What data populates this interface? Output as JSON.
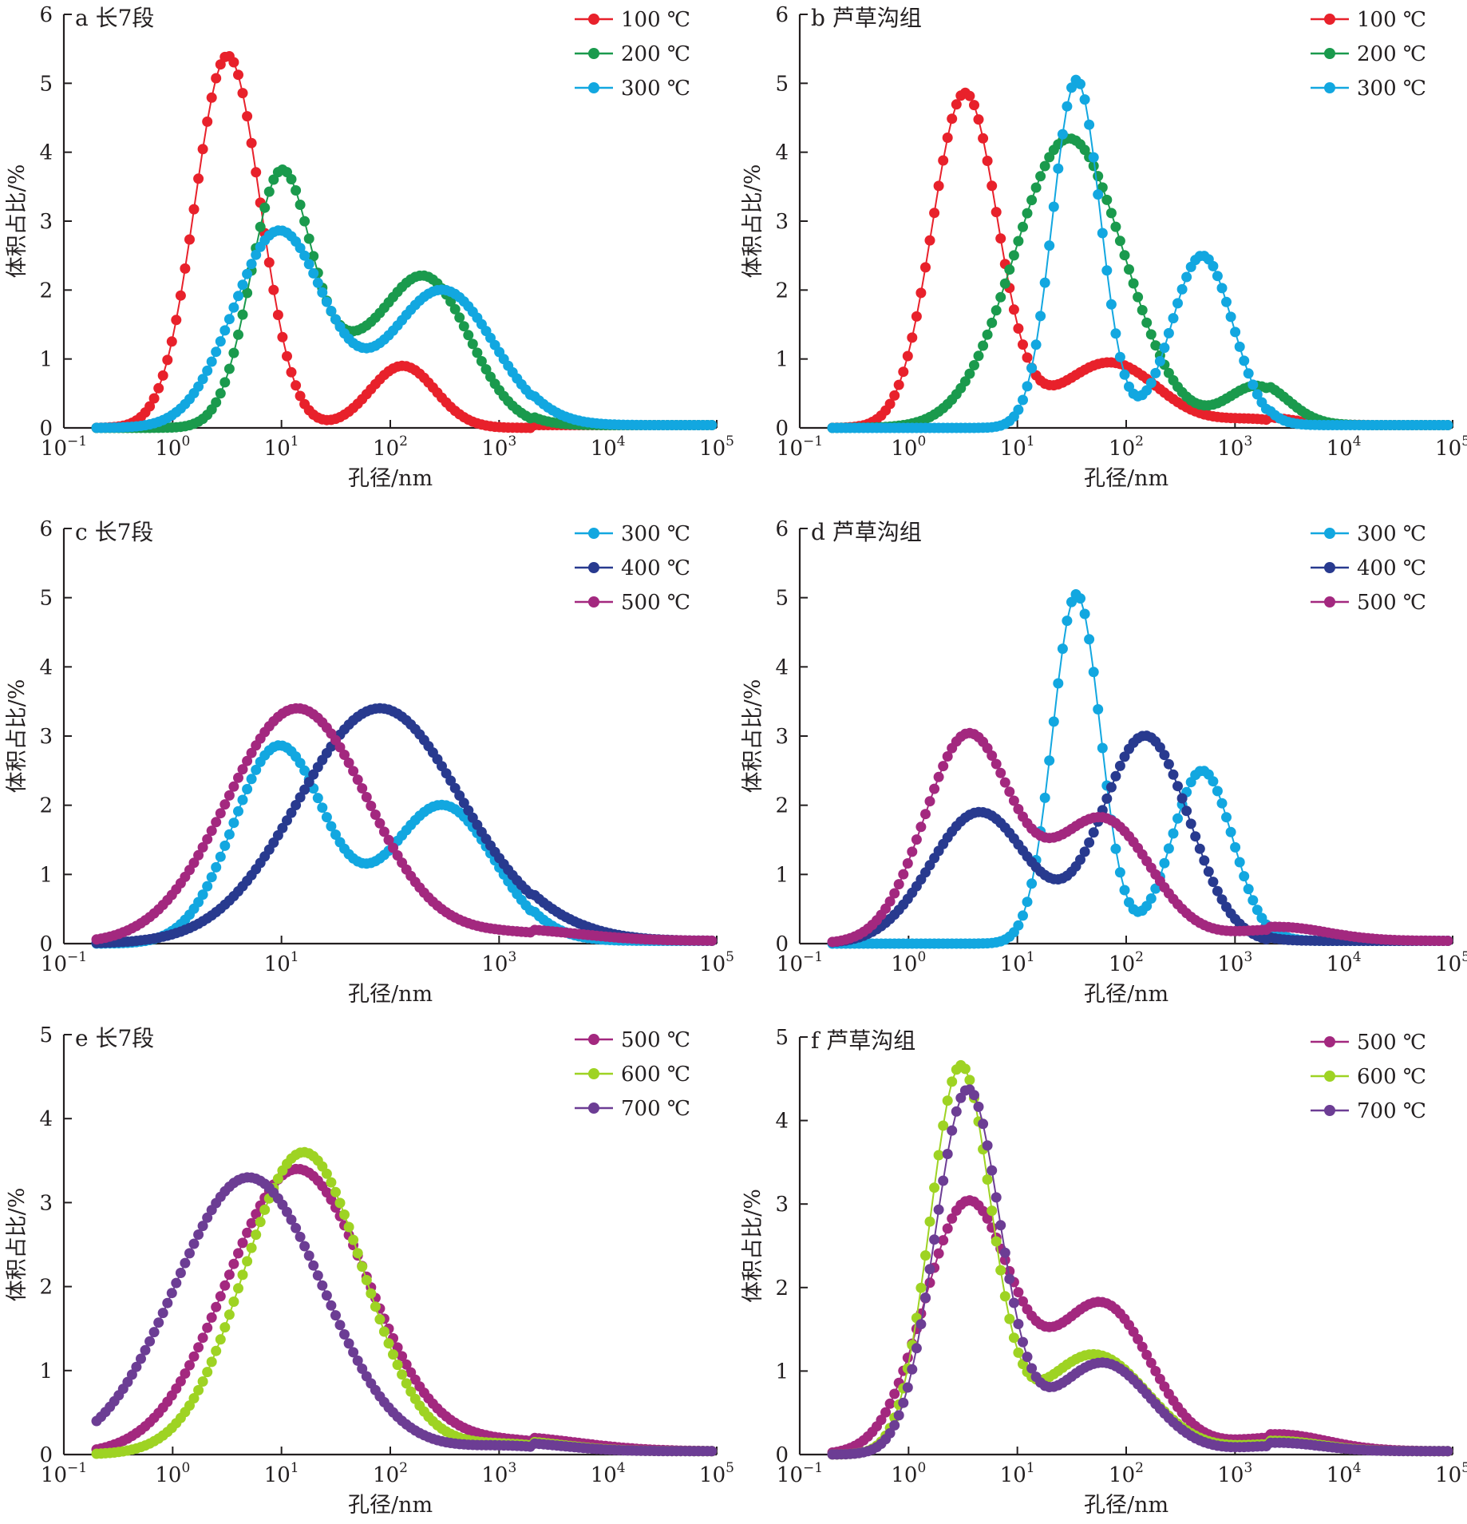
{
  "chart_data": [
    {
      "type": "line",
      "panel_label": "a 长7段",
      "xlabel": "孔径/nm",
      "ylabel": "体积占比/%",
      "xscale": "log",
      "xlim": [
        0.1,
        100000
      ],
      "xtick_exponents": [
        "−1",
        "0",
        "1",
        "2",
        "3",
        "4",
        "5"
      ],
      "xtick_base": "10",
      "ylim": [
        0,
        6
      ],
      "yticks": [
        "0",
        "1",
        "2",
        "3",
        "4",
        "5",
        "6"
      ],
      "legend_position": "top-right",
      "series": [
        {
          "name": "100 ℃",
          "color": "#e8212b",
          "peaks": [
            [
              3.2,
              5.4,
              0.3
            ],
            [
              130,
              0.9,
              0.3
            ]
          ]
        },
        {
          "name": "200 ℃",
          "color": "#1a9a4d",
          "peaks": [
            [
              10,
              3.7,
              0.28
            ],
            [
              200,
              2.2,
              0.42
            ],
            [
              40,
              0.5,
              0.25
            ]
          ]
        },
        {
          "name": "300 ℃",
          "color": "#12a7e0",
          "peaks": [
            [
              9.5,
              2.85,
              0.42
            ],
            [
              300,
              2.0,
              0.48
            ]
          ]
        }
      ]
    },
    {
      "type": "line",
      "panel_label": "b 芦草沟组",
      "xlabel": "孔径/nm",
      "ylabel": "体积占比/%",
      "xscale": "log",
      "xlim": [
        0.1,
        100000
      ],
      "xtick_exponents": [
        "−1",
        "0",
        "1",
        "2",
        "3",
        "4",
        "5"
      ],
      "xtick_base": "10",
      "ylim": [
        0,
        6
      ],
      "yticks": [
        "0",
        "1",
        "2",
        "3",
        "4",
        "5",
        "6"
      ],
      "legend_position": "top-right",
      "series": [
        {
          "name": "100 ℃",
          "color": "#e8212b",
          "peaks": [
            [
              3.3,
              4.85,
              0.3
            ],
            [
              70,
              0.95,
              0.45
            ],
            [
              1500,
              0.12,
              0.35
            ]
          ]
        },
        {
          "name": "200 ℃",
          "color": "#1a9a4d",
          "peaks": [
            [
              30,
              4.2,
              0.5
            ],
            [
              1600,
              0.6,
              0.28
            ]
          ]
        },
        {
          "name": "300 ℃",
          "color": "#12a7e0",
          "peaks": [
            [
              35,
              5.05,
              0.22
            ],
            [
              500,
              2.5,
              0.28
            ]
          ]
        }
      ]
    },
    {
      "type": "line",
      "panel_label": "c 长7段",
      "xlabel": "孔径/nm",
      "ylabel": "体积占比/%",
      "xscale": "log",
      "xlim": [
        0.1,
        100000
      ],
      "xtick_exponents": [
        "−1",
        "1",
        "3",
        "5"
      ],
      "xtick_base": "10",
      "ylim": [
        0,
        6
      ],
      "yticks": [
        "0",
        "1",
        "2",
        "3",
        "4",
        "5",
        "6"
      ],
      "legend_position": "top-right",
      "series": [
        {
          "name": "300 ℃",
          "color": "#12a7e0",
          "peaks": [
            [
              9.5,
              2.85,
              0.42
            ],
            [
              300,
              2.0,
              0.48
            ]
          ]
        },
        {
          "name": "400 ℃",
          "color": "#283a8f",
          "peaks": [
            [
              80,
              3.4,
              0.75
            ],
            [
              2500,
              0.1,
              0.5
            ]
          ]
        },
        {
          "name": "500 ℃",
          "color": "#a3287f",
          "peaks": [
            [
              14,
              3.4,
              0.65
            ],
            [
              1500,
              0.15,
              0.6
            ]
          ]
        }
      ]
    },
    {
      "type": "line",
      "panel_label": "d 芦草沟组",
      "xlabel": "孔径/nm",
      "ylabel": "体积占比/%",
      "xscale": "log",
      "xlim": [
        0.1,
        100000
      ],
      "xtick_exponents": [
        "−1",
        "0",
        "1",
        "2",
        "3",
        "4",
        "5"
      ],
      "xtick_base": "10",
      "ylim": [
        0,
        6
      ],
      "yticks": [
        "0",
        "1",
        "2",
        "3",
        "4",
        "5",
        "6"
      ],
      "legend_position": "top-right",
      "series": [
        {
          "name": "300 ℃",
          "color": "#12a7e0",
          "peaks": [
            [
              35,
              5.05,
              0.22
            ],
            [
              500,
              2.5,
              0.28
            ]
          ]
        },
        {
          "name": "400 ℃",
          "color": "#283a8f",
          "peaks": [
            [
              4.5,
              1.9,
              0.45
            ],
            [
              150,
              3.0,
              0.4
            ]
          ]
        },
        {
          "name": "500 ℃",
          "color": "#a3287f",
          "peaks": [
            [
              3.5,
              3.0,
              0.4
            ],
            [
              60,
              1.8,
              0.45
            ],
            [
              2500,
              0.2,
              0.45
            ]
          ]
        }
      ]
    },
    {
      "type": "line",
      "panel_label": "e 长7段",
      "xlabel": "孔径/nm",
      "ylabel": "体积占比/%",
      "xscale": "log",
      "xlim": [
        0.1,
        100000
      ],
      "xtick_exponents": [
        "−1",
        "0",
        "1",
        "2",
        "3",
        "4",
        "5"
      ],
      "xtick_base": "10",
      "ylim": [
        0,
        5
      ],
      "yticks": [
        "0",
        "1",
        "2",
        "3",
        "4",
        "5"
      ],
      "legend_position": "top-right",
      "series": [
        {
          "name": "500 ℃",
          "color": "#a3287f",
          "peaks": [
            [
              14,
              3.4,
              0.65
            ],
            [
              1500,
              0.15,
              0.6
            ]
          ]
        },
        {
          "name": "600 ℃",
          "color": "#9ed323",
          "peaks": [
            [
              16,
              3.6,
              0.55
            ],
            [
              1200,
              0.12,
              0.5
            ]
          ]
        },
        {
          "name": "700 ℃",
          "color": "#6c3d94",
          "peaks": [
            [
              5,
              3.3,
              0.68
            ],
            [
              1200,
              0.1,
              0.5
            ]
          ]
        }
      ]
    },
    {
      "type": "line",
      "panel_label": "f 芦草沟组",
      "xlabel": "孔径/nm",
      "ylabel": "体积占比/%",
      "xscale": "log",
      "xlim": [
        0.1,
        100000
      ],
      "xtick_exponents": [
        "−1",
        "0",
        "1",
        "2",
        "3",
        "4",
        "5"
      ],
      "xtick_base": "10",
      "ylim": [
        0,
        5
      ],
      "yticks": [
        "0",
        "1",
        "2",
        "3",
        "4",
        "5"
      ],
      "legend_position": "top-right",
      "series": [
        {
          "name": "500 ℃",
          "color": "#a3287f",
          "peaks": [
            [
              3.5,
              3.0,
              0.4
            ],
            [
              60,
              1.8,
              0.45
            ],
            [
              2500,
              0.2,
              0.45
            ]
          ]
        },
        {
          "name": "600 ℃",
          "color": "#9ed323",
          "peaks": [
            [
              3,
              4.6,
              0.28
            ],
            [
              50,
              1.2,
              0.5
            ],
            [
              2500,
              0.12,
              0.4
            ]
          ]
        },
        {
          "name": "700 ℃",
          "color": "#6c3d94",
          "peaks": [
            [
              3.5,
              4.35,
              0.3
            ],
            [
              60,
              1.1,
              0.45
            ],
            [
              2500,
              0.1,
              0.4
            ]
          ]
        }
      ]
    }
  ]
}
